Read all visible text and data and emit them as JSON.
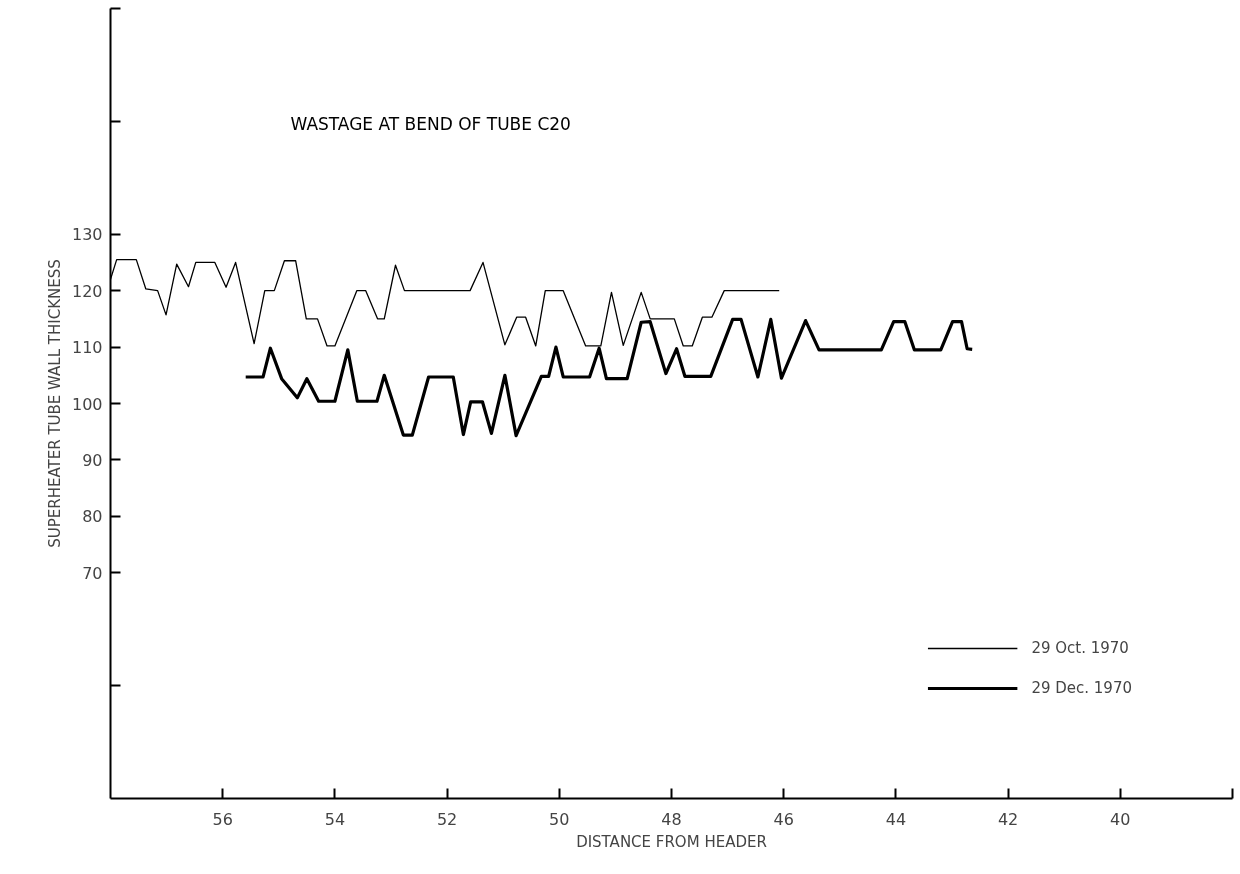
{
  "chart_data": {
    "type": "line",
    "title": "WASTAGE  AT  BEND  OF  TUBE  C20",
    "xlabel": "DISTANCE FROM HEADER",
    "ylabel": "SUPERHEATER TUBE WALL THICKNESS",
    "xlim": [
      58,
      38
    ],
    "xticks": [
      56,
      54,
      52,
      50,
      48,
      46,
      44,
      42,
      40,
      {
        "value": 38,
        "label": null
      }
    ],
    "ylim": [
      30,
      170
    ],
    "yticks": [
      {
        "value": 50,
        "label": null
      },
      70,
      80,
      90,
      100,
      110,
      120,
      130,
      {
        "value": 150,
        "label": null
      },
      {
        "value": 170,
        "label": null
      }
    ],
    "grid": false,
    "legend": "bottom right",
    "marker": "none",
    "line_style": "solid",
    "series": [
      {
        "name": "29 Oct. 1970",
        "color": "#000000",
        "x": [
          58,
          57.89,
          57.54,
          57.37,
          57.16,
          57.01,
          56.82,
          56.61,
          56.48,
          56.14,
          55.94,
          55.77,
          55.44,
          55.25,
          55.08,
          54.9,
          54.7,
          54.51,
          54.31,
          54.14,
          54.0,
          53.61,
          53.45,
          53.24,
          53.12,
          52.92,
          52.76,
          51.59,
          51.36,
          50.97,
          50.76,
          50.6,
          50.42,
          50.25,
          49.93,
          49.53,
          49.26,
          49.07,
          48.86,
          48.54,
          48.38,
          47.95,
          47.79,
          47.63,
          47.45,
          47.28,
          47.06,
          46.08
        ],
        "values": [
          122,
          125.5,
          125.5,
          120.3,
          120,
          115.7,
          124.7,
          120.7,
          125,
          125,
          120.6,
          125,
          110.6,
          120,
          120,
          125.3,
          125.3,
          115,
          115,
          110.2,
          110.2,
          120,
          120,
          115,
          115,
          124.5,
          120,
          120,
          125,
          110.4,
          115.3,
          115.3,
          110.2,
          120,
          120,
          110.2,
          110.2,
          119.7,
          110.3,
          119.7,
          115,
          115,
          110.2,
          110.2,
          115.3,
          115.3,
          120,
          120
        ]
      },
      {
        "name": "29 Dec. 1970",
        "color": "#000000",
        "x": [
          55.59,
          55.28,
          55.15,
          54.95,
          54.67,
          54.5,
          54.29,
          54.0,
          53.77,
          53.6,
          53.25,
          53.12,
          52.78,
          52.62,
          52.33,
          51.89,
          51.71,
          51.58,
          51.37,
          51.21,
          50.97,
          50.77,
          50.32,
          50.19,
          50.06,
          49.93,
          49.46,
          49.29,
          49.16,
          48.79,
          48.54,
          48.38,
          48.1,
          47.91,
          47.76,
          47.3,
          46.91,
          46.76,
          46.46,
          46.23,
          46.04,
          45.61,
          45.37,
          44.26,
          44.04,
          43.84,
          43.67,
          43.2,
          42.99,
          42.83,
          42.73,
          42.64
        ],
        "values": [
          104.7,
          104.7,
          109.8,
          104.4,
          101,
          104.4,
          100.4,
          100.4,
          109.5,
          100.4,
          100.4,
          105,
          94.4,
          94.4,
          104.7,
          104.7,
          94.5,
          100.3,
          100.3,
          94.7,
          105,
          94.3,
          104.8,
          104.8,
          110,
          104.7,
          104.7,
          109.8,
          104.4,
          104.4,
          114.4,
          114.5,
          105.3,
          109.7,
          104.8,
          104.8,
          114.9,
          114.9,
          104.7,
          114.9,
          104.5,
          114.7,
          109.5,
          109.5,
          114.5,
          114.5,
          109.5,
          109.5,
          114.5,
          114.5,
          109.7,
          109.6
        ]
      }
    ]
  }
}
